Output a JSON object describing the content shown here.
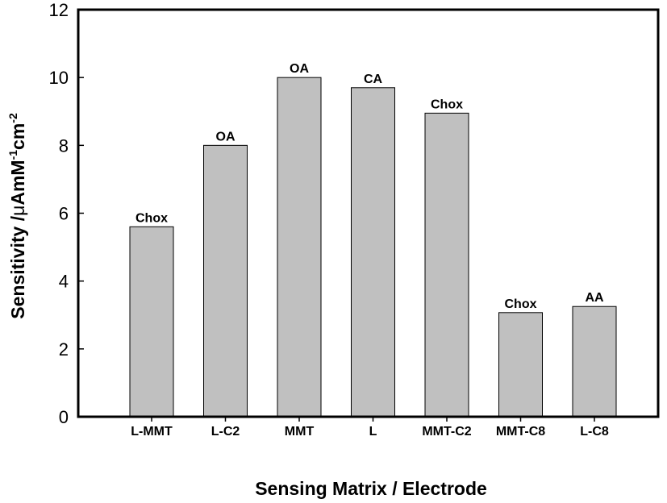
{
  "colors": {
    "bar_fill": "#c0c0c0",
    "bar_stroke": "#000000",
    "frame": "#000000"
  },
  "chart_data": {
    "type": "bar",
    "title": "",
    "xlabel": "Sensing Matrix / Electrode",
    "ylabel": {
      "text": "Sensitivity /",
      "mu": "μ",
      "unit_a": "AmM",
      "sup_a": "-1",
      "unit_b": "cm",
      "sup_b": "-2"
    },
    "categories": [
      "L-MMT",
      "L-C2",
      "MMT",
      "L",
      "MMT-C2",
      "MMT-C8",
      "L-C8"
    ],
    "values": [
      5.6,
      8.0,
      10.0,
      9.7,
      8.95,
      3.07,
      3.25
    ],
    "bar_labels": [
      "Chox",
      "OA",
      "OA",
      "CA",
      "Chox",
      "Chox",
      "AA"
    ],
    "ylim": [
      0,
      12
    ],
    "yticks": [
      0,
      2,
      4,
      6,
      8,
      10,
      12
    ],
    "grid": false,
    "legend": "none"
  }
}
